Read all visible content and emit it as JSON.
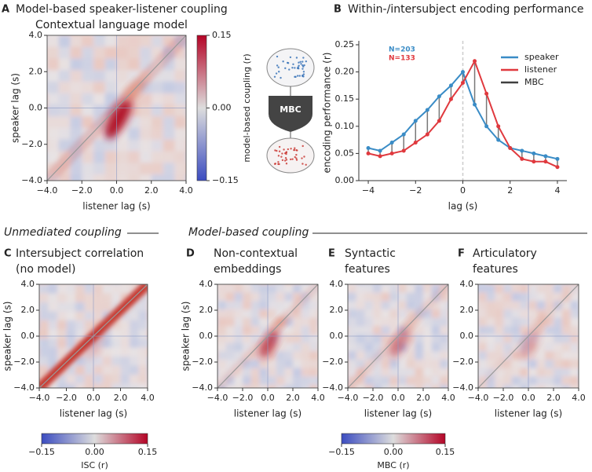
{
  "chart_data": [
    {
      "type": "heatmap",
      "panel": "A",
      "title": "Model-based speaker-listener coupling",
      "subtitle": "Contextual language model",
      "xlabel": "listener lag (s)",
      "ylabel": "speaker lag (s)",
      "xlim": [
        -4,
        4
      ],
      "ylim": [
        -4,
        4
      ],
      "xticks": [
        {
          "value": -4,
          "label": "−4.0"
        },
        {
          "value": -2,
          "label": "−2.0"
        },
        {
          "value": 0,
          "label": "0.0"
        },
        {
          "value": 2,
          "label": "2.0"
        },
        {
          "value": 4,
          "label": "4.0"
        }
      ],
      "yticks": [
        {
          "value": -4,
          "label": "−4.0"
        },
        {
          "value": -2,
          "label": "−2.0"
        },
        {
          "value": 0,
          "label": "0.0"
        },
        {
          "value": 2,
          "label": "2.0"
        },
        {
          "value": 4,
          "label": "4.0"
        }
      ],
      "colorbar": {
        "label": "model-based coupling (r)",
        "lim": [
          -0.15,
          0.15
        ],
        "ticks": [
          {
            "value": -0.15,
            "label": "−0.15"
          },
          {
            "value": 0,
            "label": "0.00"
          },
          {
            "value": 0.15,
            "label": "0.15"
          }
        ]
      }
    },
    {
      "type": "line",
      "panel": "B",
      "title": "Within-/intersubject encoding performance",
      "xlabel": "lag (s)",
      "ylabel": "encoding performance (r)",
      "xlim": [
        -4.4,
        4.4
      ],
      "ylim": [
        0,
        0.25
      ],
      "xticks": [
        {
          "value": -4,
          "label": "−4"
        },
        {
          "value": -2,
          "label": "−2"
        },
        0,
        2,
        4
      ],
      "yticks": [
        {
          "value": 0,
          "label": "0.00"
        },
        0.05,
        {
          "value": 0.1,
          "label": "0.10"
        },
        0.15,
        {
          "value": 0.2,
          "label": "0.20"
        },
        0.25
      ],
      "x": [
        -4,
        -3.5,
        -3,
        -2.5,
        -2,
        -1.5,
        -1,
        -0.5,
        0,
        0.5,
        1,
        1.5,
        2,
        2.5,
        3,
        3.5,
        4
      ],
      "series": [
        {
          "name": "speaker",
          "color": "#3a8cc6",
          "values": [
            0.06,
            0.055,
            0.07,
            0.085,
            0.11,
            0.13,
            0.155,
            0.175,
            0.2,
            0.14,
            0.1,
            0.075,
            0.06,
            0.055,
            0.05,
            0.045,
            0.04
          ]
        },
        {
          "name": "listener",
          "color": "#e0393e",
          "values": [
            0.05,
            0.045,
            0.05,
            0.055,
            0.07,
            0.085,
            0.11,
            0.15,
            0.18,
            0.22,
            0.16,
            0.1,
            0.06,
            0.04,
            0.035,
            0.035,
            0.025
          ]
        },
        {
          "name": "MBC",
          "color": "#404040"
        }
      ],
      "annotations": [
        {
          "text": "N=203",
          "color": "#3a8cc6"
        },
        {
          "text": "N=133",
          "color": "#e0393e"
        }
      ]
    },
    {
      "type": "heatmap",
      "panel": "C",
      "title": [
        "Intersubject correlation",
        "(no model)"
      ],
      "xlabel": "listener lag (s)",
      "ylabel": "speaker lag (s)",
      "xlim": [
        -4,
        4
      ],
      "ylim": [
        -4,
        4
      ],
      "xticks": [
        {
          "value": -4,
          "label": "−4.0"
        },
        {
          "value": -2,
          "label": "−2.0"
        },
        {
          "value": 0,
          "label": "0.0"
        },
        {
          "value": 2,
          "label": "2.0"
        },
        {
          "value": 4,
          "label": "4.0"
        }
      ],
      "yticks": [
        {
          "value": -4,
          "label": "−4.0"
        },
        {
          "value": -2,
          "label": "−2.0"
        },
        {
          "value": 0,
          "label": "0.0"
        },
        {
          "value": 2,
          "label": "2.0"
        },
        {
          "value": 4,
          "label": "4.0"
        }
      ],
      "colorbar": {
        "label": "ISC (r)",
        "lim": [
          -0.15,
          0.15
        ],
        "ticks": [
          {
            "value": -0.15,
            "label": "−0.15"
          },
          {
            "value": 0,
            "label": "0.00"
          },
          {
            "value": 0.15,
            "label": "0.15"
          }
        ]
      }
    },
    {
      "type": "heatmap",
      "panel": "D",
      "title": [
        "Non-contextual",
        "embeddings"
      ],
      "xlabel": "listener lag (s)",
      "ylabel": "speaker lag (s)",
      "xlim": [
        -4,
        4
      ],
      "ylim": [
        -4,
        4
      ],
      "xticks": [
        {
          "value": -4,
          "label": "−4.0"
        },
        {
          "value": -2,
          "label": "−2.0"
        },
        {
          "value": 0,
          "label": "0.0"
        },
        {
          "value": 2,
          "label": "2.0"
        },
        {
          "value": 4,
          "label": "4.0"
        }
      ],
      "yticks": [
        {
          "value": -4,
          "label": "−4.0"
        },
        {
          "value": -2,
          "label": "−2.0"
        },
        {
          "value": 0,
          "label": "0.0"
        },
        {
          "value": 2,
          "label": "2.0"
        },
        {
          "value": 4,
          "label": "4.0"
        }
      ]
    },
    {
      "type": "heatmap",
      "panel": "E",
      "title": [
        "Syntactic",
        "features"
      ],
      "xlabel": "listener lag (s)",
      "xlim": [
        -4,
        4
      ],
      "ylim": [
        -4,
        4
      ],
      "xticks": [
        {
          "value": -4,
          "label": "−4.0"
        },
        {
          "value": -2,
          "label": "−2.0"
        },
        {
          "value": 0,
          "label": "0.0"
        },
        {
          "value": 2,
          "label": "2.0"
        },
        {
          "value": 4,
          "label": "4.0"
        }
      ],
      "yticks": [
        {
          "value": -4,
          "label": "−4.0"
        },
        {
          "value": -2,
          "label": "−2.0"
        },
        {
          "value": 0,
          "label": "0.0"
        },
        {
          "value": 2,
          "label": "2.0"
        },
        {
          "value": 4,
          "label": "4.0"
        }
      ],
      "colorbar": {
        "label": "MBC (r)",
        "lim": [
          -0.15,
          0.15
        ],
        "ticks": [
          {
            "value": -0.15,
            "label": "−0.15"
          },
          {
            "value": 0,
            "label": "0.00"
          },
          {
            "value": 0.15,
            "label": "0.15"
          }
        ]
      }
    },
    {
      "type": "heatmap",
      "panel": "F",
      "title": [
        "Articulatory",
        "features"
      ],
      "xlabel": "listener lag (s)",
      "xlim": [
        -4,
        4
      ],
      "ylim": [
        -4,
        4
      ],
      "xticks": [
        {
          "value": -4,
          "label": "−4.0"
        },
        {
          "value": -2,
          "label": "−2.0"
        },
        {
          "value": 0,
          "label": "0.0"
        },
        {
          "value": 2,
          "label": "2.0"
        },
        {
          "value": 4,
          "label": "4.0"
        }
      ],
      "yticks": [
        {
          "value": -4,
          "label": "−4.0"
        },
        {
          "value": -2,
          "label": "−2.0"
        },
        {
          "value": 0,
          "label": "0.0"
        },
        {
          "value": 2,
          "label": "2.0"
        },
        {
          "value": 4,
          "label": "4.0"
        }
      ]
    }
  ],
  "diagram": {
    "label": "MBC"
  },
  "sections": [
    "Unmediated coupling",
    "Model-based coupling"
  ]
}
